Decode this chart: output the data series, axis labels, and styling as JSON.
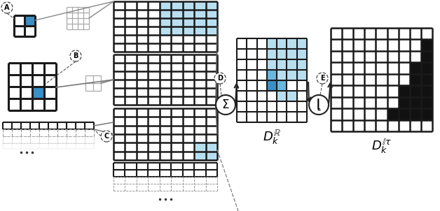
{
  "bg_color": "#ffffff",
  "grid_color": "#1a1a1a",
  "blue_light": "#b8dff0",
  "blue_mid": "#6ab8e0",
  "blue_dark": "#3a8fc7",
  "gray_grid": "#aaaaaa",
  "dark_cell": "#111111",
  "label_A": "A",
  "label_B": "B",
  "label_C": "C",
  "label_D": "D",
  "label_E": "E",
  "label_sum": "Σ",
  "label_thresh": "ȷ"
}
